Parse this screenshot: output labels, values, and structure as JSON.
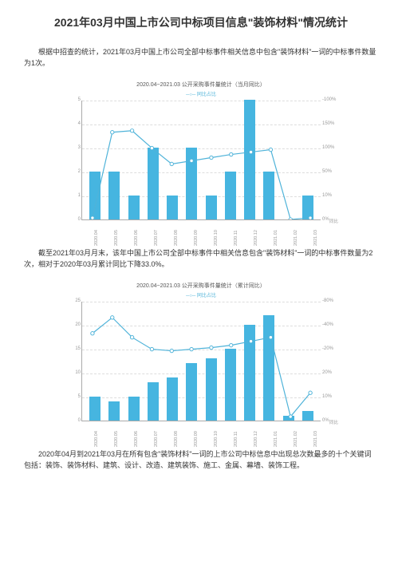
{
  "title": "2021年03月中国上市公司中标项目信息\"装饰材料\"情况统计",
  "para1": "根据中招查的统计，2021年03月中国上市公司全部中标事件相关信息中包含\"装饰材料\"一词的中标事件数量为1次。",
  "para2": "截至2021年03月月末，该年中国上市公司全部中标事件中相关信息包含\"装饰材料\"一词的中标事件数量为2次，相对于2020年03月累计同比下降33.0%。",
  "para3": "2020年04月到2021年03月在所有包含\"装饰材料\"一词的上市公司中标信息中出现总次数最多的十个关键词包括：装饰、装饰材料、建筑、设计、改造、建筑装饰、施工、金属、幕墙、装饰工程。",
  "chart1": {
    "title": "2020.04~2021.03 公开采购事件量统计（当月同比）",
    "legend": "同比占比",
    "categories": [
      "2020.04",
      "2020.05",
      "2020.06",
      "2020.07",
      "2020.08",
      "2020.09",
      "2020.10",
      "2020.11",
      "2020.12",
      "2021.01",
      "2021.02",
      "2021.03"
    ],
    "bar_values": [
      2,
      2,
      1,
      3,
      1,
      3,
      1,
      2,
      5,
      2,
      0,
      1
    ],
    "bar_color": "#46b5e0",
    "y_max_left": 5,
    "y_ticks_left": [
      0,
      1,
      2,
      3,
      4,
      5
    ],
    "y_ticks_right": [
      "0%",
      "10%",
      "50%",
      "100%",
      "150%",
      "-100%"
    ],
    "line_points": [
      148,
      40,
      38,
      60,
      80,
      76,
      72,
      68,
      65,
      62,
      150,
      148
    ],
    "line_color": "#4fb3d9",
    "bg": "#ffffff",
    "grid_color": "#dddddd",
    "right_axis_label": "同比"
  },
  "chart2": {
    "title": "2020.04~2021.03 公开采购事件量统计（累计同比）",
    "legend": "同比占比",
    "categories": [
      "2020.04",
      "2020.05",
      "2020.06",
      "2020.07",
      "2020.08",
      "2020.09",
      "2020.10",
      "2020.11",
      "2020.12",
      "2021.01",
      "2021.02",
      "2021.03"
    ],
    "bar_values": [
      5,
      4,
      5,
      8,
      9,
      12,
      13,
      15,
      20,
      22,
      1,
      2
    ],
    "bar_color": "#46b5e0",
    "y_max_left": 25,
    "y_ticks_left": [
      0,
      5,
      10,
      15,
      20,
      25
    ],
    "y_ticks_right": [
      "0%",
      "10%",
      "20%",
      "-20%",
      "-40%",
      "-80%"
    ],
    "line_points": [
      40,
      20,
      45,
      60,
      62,
      60,
      58,
      55,
      50,
      45,
      145,
      115
    ],
    "line_color": "#4fb3d9",
    "bg": "#ffffff",
    "grid_color": "#dddddd",
    "right_axis_label": "同比"
  }
}
